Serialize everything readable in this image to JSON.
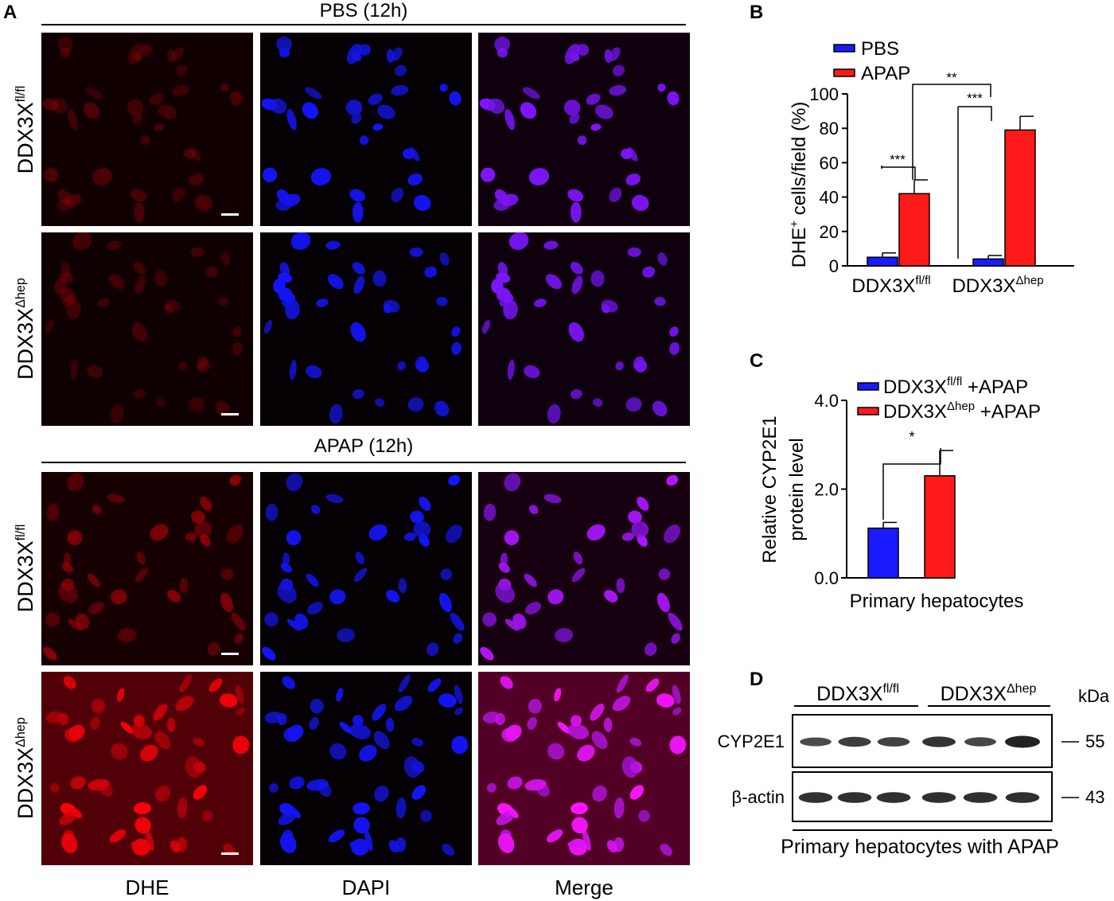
{
  "panel_a": {
    "letter": "A",
    "groups": [
      {
        "title": "PBS (12h)"
      },
      {
        "title": "APAP (12h)"
      }
    ],
    "row_labels": [
      {
        "base": "DDX3X",
        "sup": "fl/fl"
      },
      {
        "base": "DDX3X",
        "sup": "Δhep"
      },
      {
        "base": "DDX3X",
        "sup": "fl/fl"
      },
      {
        "base": "DDX3X",
        "sup": "Δhep"
      }
    ],
    "columns": [
      "DHE",
      "DAPI",
      "Merge"
    ]
  },
  "panel_b": {
    "letter": "B",
    "legend": [
      "PBS",
      "APAP"
    ],
    "ylabel_main": "DHE",
    "ylabel_sup": "+",
    "ylabel_rest": " cells/field (%)",
    "colors": {
      "pbs": "#1a1aff",
      "apap": "#ff1a1a"
    },
    "significance": [
      "***",
      "***",
      "**"
    ],
    "chart_data": {
      "type": "bar",
      "categories": [
        {
          "base": "DDX3X",
          "sup": "fl/fl"
        },
        {
          "base": "DDX3X",
          "sup": "Δhep"
        }
      ],
      "series": [
        {
          "name": "PBS",
          "values": [
            5,
            4
          ],
          "errors": [
            2.5,
            2
          ]
        },
        {
          "name": "APAP",
          "values": [
            42,
            79
          ],
          "errors": [
            8,
            8
          ]
        }
      ],
      "ylim": [
        0,
        100
      ],
      "yticks": [
        "0",
        "20",
        "40",
        "60",
        "80",
        "100"
      ]
    }
  },
  "panel_c": {
    "letter": "C",
    "legend": [
      {
        "base": "DDX3X",
        "sup": "fl/fl",
        "suffix": " +APAP"
      },
      {
        "base": "DDX3X",
        "sup": "Δhep",
        "suffix": " +APAP"
      }
    ],
    "ylabel_line1": "Relative CYP2E1",
    "ylabel_line2": "protein level",
    "xlabel": "Primary hepatocytes",
    "significance": "*",
    "colors": {
      "flfl": "#1a1aff",
      "dhep": "#ff1a1a"
    },
    "chart_data": {
      "type": "bar",
      "series": [
        {
          "name": "DDX3X fl/fl +APAP",
          "value": 1.12,
          "error": 0.13
        },
        {
          "name": "DDX3X Δhep +APAP",
          "value": 2.3,
          "error": 0.57
        }
      ],
      "ylim": [
        0,
        4.0
      ],
      "yticks": [
        "0.0",
        "2.0",
        "4.0"
      ]
    }
  },
  "panel_d": {
    "letter": "D",
    "groups": [
      {
        "base": "DDX3X",
        "sup": "fl/fl"
      },
      {
        "base": "DDX3X",
        "sup": "Δhep"
      }
    ],
    "kda_label": "kDa",
    "rows": [
      {
        "label": "CYP2E1",
        "kda": "55",
        "intensities": [
          0.55,
          0.7,
          0.65,
          0.8,
          0.6,
          1.0
        ]
      },
      {
        "label": "β-actin",
        "kda": "43",
        "intensities": [
          0.85,
          0.85,
          0.85,
          0.85,
          0.85,
          0.85
        ]
      }
    ],
    "caption": "Primary hepatocytes with APAP"
  }
}
